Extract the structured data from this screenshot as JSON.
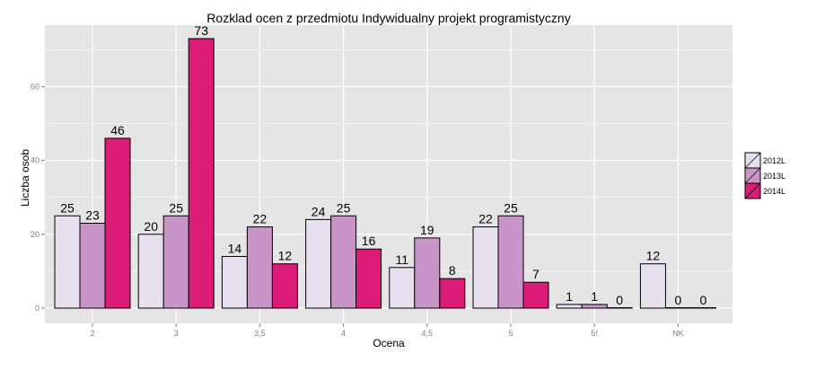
{
  "chart_data": {
    "type": "bar",
    "title": "Rozklad ocen z przedmiotu  Indywidualny projekt programistyczny",
    "xlabel": "Ocena",
    "ylabel": "Liczba osob",
    "categories": [
      "2",
      "3",
      "3,5",
      "4",
      "4,5",
      "5",
      "5!",
      "NK"
    ],
    "series": [
      {
        "name": "2012L",
        "color": "#e7e1ef",
        "values": [
          25,
          20,
          14,
          24,
          11,
          22,
          1,
          12
        ]
      },
      {
        "name": "2013L",
        "color": "#c994c7",
        "values": [
          23,
          25,
          22,
          25,
          19,
          25,
          1,
          0
        ]
      },
      {
        "name": "2014L",
        "color": "#dd1c77",
        "values": [
          46,
          73,
          12,
          16,
          8,
          7,
          0,
          0
        ]
      }
    ],
    "ylim": [
      0,
      75
    ],
    "yticks": [
      0,
      20,
      40,
      60
    ],
    "grid": true,
    "legend_position": "right",
    "background_color": "#e5e5e5",
    "grid_color": "#ffffff"
  }
}
